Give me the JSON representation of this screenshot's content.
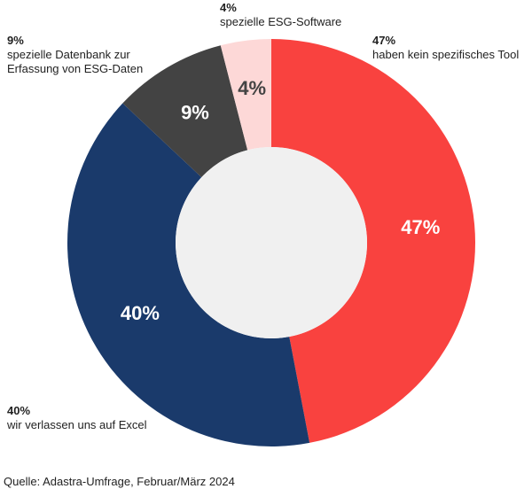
{
  "chart_data": {
    "type": "donut",
    "categories": [
      "haben kein spezifisches Tool",
      "wir verlassen uns auf Excel",
      "spezielle Datenbank zur Erfassung von ESG-Daten",
      "spezielle ESG-Software"
    ],
    "values": [
      47,
      40,
      9,
      4
    ],
    "value_labels": [
      "47%",
      "40%",
      "9%",
      "4%"
    ],
    "colors": [
      "#f9423f",
      "#1a3a6b",
      "#434343",
      "#fdd8d7"
    ],
    "source": "Quelle: Adastra-Umfrage, Februar/März 2024"
  }
}
